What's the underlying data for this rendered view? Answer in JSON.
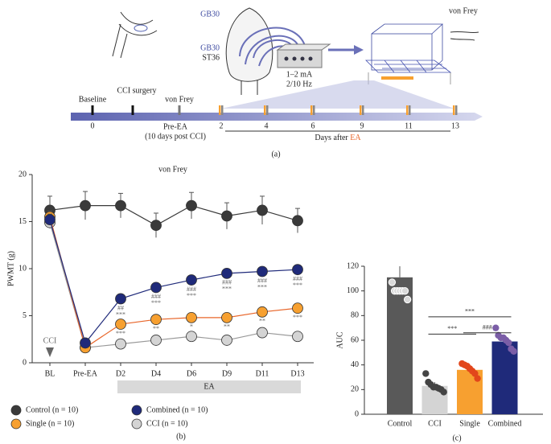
{
  "figure": {
    "panel_labels": [
      "(a)",
      "(b)",
      "(c)"
    ]
  },
  "diagram": {
    "von_frey_top": "von Frey",
    "acupoint_1": "GB30",
    "acupoint_2": "ST36",
    "current": "1–2 mA",
    "frequency": "2/10 Hz",
    "baseline": "Baseline",
    "surgery": "CCI surgery",
    "von_frey": "von Frey",
    "pre_ea": "Pre-EA",
    "pre_ea_note": "(10 days post CCI)",
    "days": [
      0,
      2,
      4,
      6,
      9,
      11,
      13
    ],
    "days_after": "Days after",
    "ea": "EA"
  },
  "chart_data": [
    {
      "type": "line",
      "title": "von Frey",
      "y_label": "PWMT (g)",
      "categories": [
        "BL",
        "Pre-EA",
        "D2",
        "D4",
        "D6",
        "D9",
        "D11",
        "D13"
      ],
      "ylim": [
        0,
        20
      ],
      "yticks": [
        0,
        5,
        10,
        15,
        20
      ],
      "arrow_label": "CCI",
      "span_label": "EA",
      "series": [
        {
          "name": "Control (n = 10)",
          "color": "#3a3a3a",
          "values": [
            16.2,
            16.7,
            16.7,
            14.6,
            16.7,
            15.6,
            16.2,
            15.1
          ],
          "errors": [
            1.5,
            1.5,
            1.3,
            1.3,
            1.4,
            1.4,
            1.5,
            1.3
          ]
        },
        {
          "name": "Combined (n = 10)",
          "color": "#1f2a7a",
          "values": [
            15.2,
            2.1,
            6.8,
            8.0,
            8.8,
            9.5,
            9.7,
            9.9
          ],
          "errors": [
            0.6,
            0.3,
            0.4,
            0.4,
            0.4,
            0.4,
            0.4,
            0.4
          ],
          "labels": [
            null,
            null,
            [
              "##",
              "***"
            ],
            [
              "###",
              "***"
            ],
            [
              "###",
              "***"
            ],
            [
              "###",
              "***"
            ],
            [
              "###",
              "***"
            ],
            [
              "###",
              "***"
            ]
          ]
        },
        {
          "name": "Single (n = 10)",
          "color": "#f7a030",
          "values": [
            15.5,
            1.6,
            4.1,
            4.6,
            4.8,
            4.8,
            5.4,
            5.8
          ],
          "errors": [
            0.6,
            0.3,
            0.4,
            0.4,
            0.4,
            0.4,
            0.4,
            0.4
          ],
          "labels": [
            null,
            null,
            [
              "***"
            ],
            [
              "**"
            ],
            [
              "*"
            ],
            [
              "**"
            ],
            [
              "**"
            ],
            [
              "***"
            ]
          ]
        },
        {
          "name": "CCI (n = 10)",
          "color": "#d4d4d4",
          "values": [
            14.9,
            1.6,
            2.0,
            2.4,
            2.8,
            2.4,
            3.2,
            2.8
          ],
          "errors": [
            0.6,
            0.3,
            0.4,
            0.4,
            0.4,
            0.4,
            0.4,
            0.4
          ]
        }
      ]
    },
    {
      "type": "bar",
      "y_label": "AUC",
      "categories": [
        "Control",
        "CCI",
        "Single",
        "Combined"
      ],
      "values": [
        111,
        23,
        36,
        59
      ],
      "errors": [
        9,
        3,
        4,
        4
      ],
      "colors": [
        "#595959",
        "#d4d4d4",
        "#f7a030",
        "#1f2a7a"
      ],
      "point_colors": [
        "#d9d9d9",
        "#444444",
        "#e2461b",
        "#7b5ea7"
      ],
      "points": [
        [
          107,
          100,
          100,
          100,
          100,
          100,
          93
        ],
        [
          33,
          26,
          24,
          22,
          22,
          21,
          20,
          18
        ],
        [
          41,
          40,
          39,
          37,
          35,
          33,
          29
        ],
        [
          70,
          64,
          62,
          62,
          60,
          58,
          53,
          51
        ]
      ],
      "ylim": [
        0,
        120
      ],
      "yticks": [
        0,
        20,
        40,
        60,
        80,
        100,
        120
      ],
      "brackets": [
        {
          "pair": [
            1,
            3
          ],
          "label": "***",
          "y": 79
        },
        {
          "pair": [
            1,
            2
          ],
          "label": "***",
          "y": 65
        },
        {
          "pair": [
            2,
            3
          ],
          "label": "###",
          "y": 66
        }
      ]
    }
  ]
}
